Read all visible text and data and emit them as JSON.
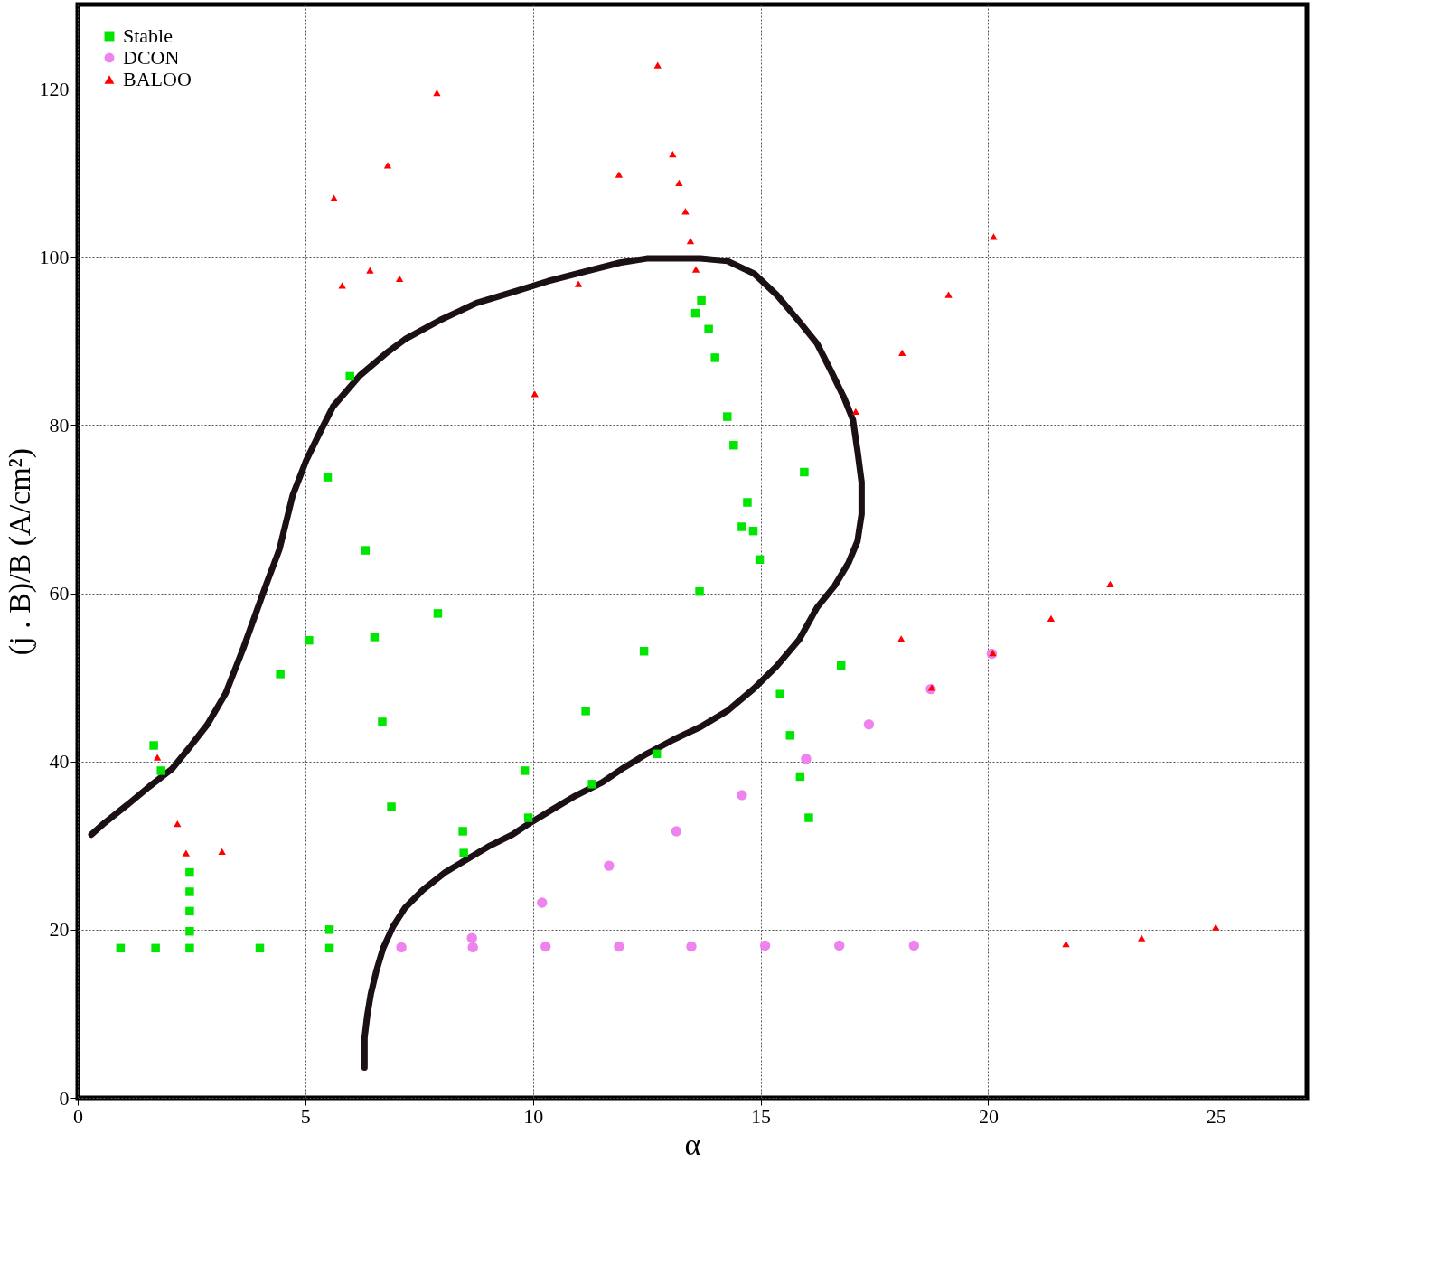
{
  "chart_data": {
    "type": "scatter",
    "xlabel": "α",
    "ylabel": "(j . B)/B (A/cm²)",
    "xlim": [
      0,
      27
    ],
    "ylim": [
      0,
      130
    ],
    "xticks": [
      0,
      5,
      10,
      15,
      20,
      25
    ],
    "yticks": [
      0,
      20,
      40,
      60,
      80,
      100,
      120
    ],
    "grid": true,
    "legend": "top left",
    "series": [
      {
        "type": "line",
        "color": "#1a1016",
        "marker": "none",
        "line_style": "solid",
        "x": [
          6.3,
          6.3,
          6.36,
          6.44,
          6.56,
          6.71,
          6.93,
          7.19,
          7.58,
          8.07,
          8.56,
          9.06,
          9.55,
          9.94,
          10.43,
          10.93,
          11.52,
          12.01,
          12.5,
          13.09,
          13.68,
          14.27,
          14.86,
          15.35,
          15.85,
          16.24,
          16.63,
          16.93,
          17.13,
          17.22,
          17.22,
          17.13,
          17.03,
          16.83,
          16.54,
          16.24,
          15.85,
          15.35,
          14.86,
          14.27,
          13.68,
          13.09,
          12.5,
          11.91,
          11.12,
          10.33,
          9.55,
          8.76,
          7.97,
          7.19,
          6.79,
          6.2,
          5.61,
          5.31,
          5.02,
          4.72,
          4.43,
          4.13,
          3.64,
          3.25,
          2.85,
          2.46,
          2.07,
          1.57,
          1.08,
          0.59,
          0.3
        ],
        "values": [
          3.6,
          7.1,
          9.8,
          12.4,
          15.1,
          17.8,
          20.4,
          22.6,
          24.7,
          26.8,
          28.4,
          30.0,
          31.3,
          32.7,
          34.3,
          35.9,
          37.5,
          39.3,
          40.9,
          42.6,
          44.1,
          46.0,
          48.7,
          51.3,
          54.5,
          58.3,
          60.9,
          63.6,
          66.2,
          69.4,
          73.2,
          76.9,
          80.6,
          83.3,
          86.5,
          89.7,
          92.3,
          95.5,
          98.0,
          99.5,
          99.8,
          99.8,
          99.8,
          99.3,
          98.2,
          97.1,
          95.8,
          94.5,
          92.5,
          90.2,
          88.6,
          85.9,
          82.2,
          79.0,
          75.8,
          71.6,
          65.2,
          60.9,
          53.5,
          48.1,
          44.4,
          41.7,
          39.1,
          37.0,
          34.8,
          32.7,
          31.3
        ]
      },
      {
        "name": "Stable",
        "color": "#00e600",
        "marker": "square",
        "x": [
          0.94,
          1.71,
          1.67,
          1.83,
          2.46,
          2.46,
          2.46,
          2.46,
          2.46,
          4.0,
          4.45,
          5.08,
          5.49,
          5.53,
          5.53,
          5.98,
          6.32,
          6.52,
          6.69,
          6.89,
          7.91,
          8.46,
          8.48,
          9.82,
          9.9,
          11.16,
          11.3,
          12.44,
          12.72,
          13.57,
          13.7,
          13.66,
          13.86,
          14.0,
          14.27,
          14.41,
          14.59,
          14.71,
          14.84,
          14.98,
          15.43,
          15.65,
          15.87,
          15.96,
          16.06,
          16.77
        ],
        "values": [
          17.8,
          17.8,
          41.9,
          38.9,
          17.8,
          19.8,
          22.2,
          24.5,
          26.8,
          17.8,
          50.4,
          54.4,
          73.8,
          20.0,
          17.8,
          85.8,
          65.1,
          54.8,
          44.7,
          34.6,
          57.6,
          31.7,
          29.1,
          38.9,
          33.3,
          46.0,
          37.3,
          53.1,
          40.9,
          93.3,
          94.8,
          60.2,
          91.4,
          88.0,
          81.0,
          77.6,
          67.9,
          70.8,
          67.4,
          64.0,
          48.0,
          43.1,
          38.2,
          74.4,
          33.3,
          51.4
        ]
      },
      {
        "name": "DCON",
        "color": "#ee82ee",
        "marker": "circle",
        "x": [
          7.11,
          8.66,
          8.68,
          10.2,
          10.28,
          11.67,
          11.89,
          13.15,
          13.48,
          14.59,
          15.1,
          16.0,
          16.73,
          17.38,
          18.37,
          18.74,
          20.08
        ],
        "values": [
          17.9,
          19.0,
          17.9,
          23.2,
          18.0,
          27.6,
          18.0,
          31.7,
          18.0,
          36.0,
          18.1,
          40.3,
          18.1,
          44.4,
          18.1,
          48.6,
          52.8
        ]
      },
      {
        "name": "BALOO",
        "color": "#ff0000",
        "marker": "triangle",
        "x": [
          1.75,
          2.19,
          2.38,
          3.17,
          5.63,
          5.81,
          6.42,
          6.81,
          7.07,
          7.89,
          10.04,
          11.0,
          11.89,
          12.74,
          13.07,
          13.21,
          13.35,
          13.46,
          13.58,
          17.09,
          18.11,
          18.09,
          18.76,
          19.13,
          20.12,
          20.1,
          21.38,
          21.71,
          22.68,
          23.37,
          25.0
        ],
        "values": [
          40.5,
          32.6,
          29.1,
          29.3,
          107.0,
          96.6,
          98.4,
          110.9,
          97.4,
          119.5,
          83.7,
          96.8,
          109.8,
          122.8,
          112.2,
          108.8,
          105.4,
          101.9,
          98.5,
          81.6,
          88.6,
          54.6,
          48.8,
          95.5,
          102.4,
          52.9,
          57.0,
          18.3,
          61.1,
          19.0,
          20.3
        ]
      }
    ]
  }
}
